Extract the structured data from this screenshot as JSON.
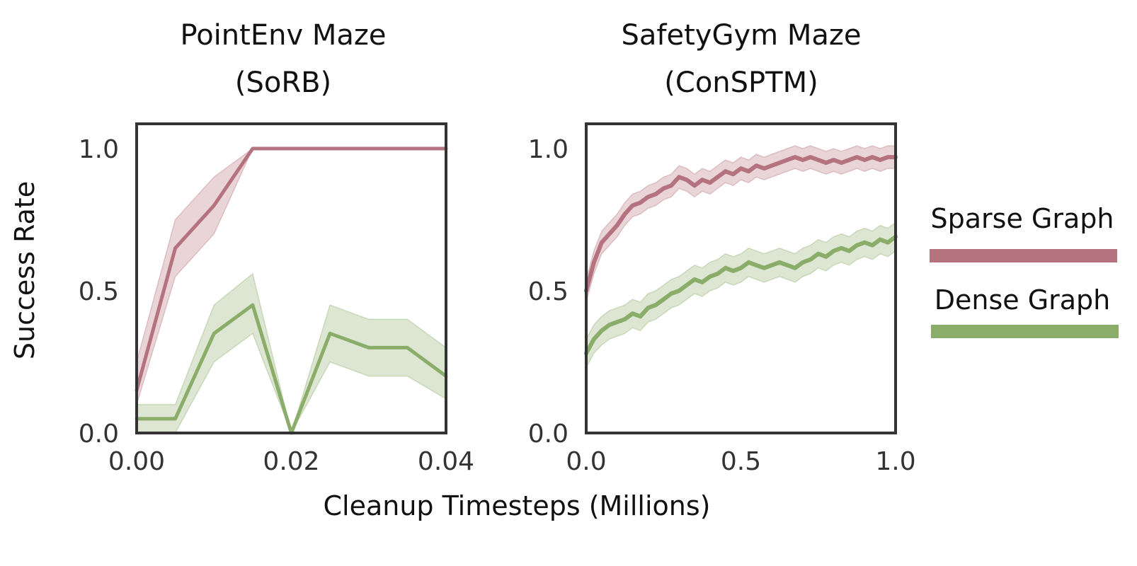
{
  "colors": {
    "sparse": "#b5737f",
    "dense": "#8aad6a",
    "text": "#111111",
    "frame": "#333333"
  },
  "ylabel": "Success Rate",
  "xlabel": "Cleanup Timesteps (Millions)",
  "legend": [
    {
      "label": "Sparse Graph",
      "color": "#b5737f"
    },
    {
      "label": "Dense Graph",
      "color": "#8aad6a"
    }
  ],
  "chart_data": [
    {
      "type": "line",
      "title_line1": "PointEnv Maze",
      "title_line2": "(SoRB)",
      "xlim": [
        0,
        0.04
      ],
      "ylim": [
        0,
        1.0
      ],
      "xticks": [
        "0.00",
        "0.02",
        "0.04"
      ],
      "xtick_values": [
        0,
        0.02,
        0.04
      ],
      "yticks": [
        "0.0",
        "0.5",
        "1.0"
      ],
      "ytick_values": [
        0,
        0.5,
        1.0
      ],
      "grid": false,
      "series": [
        {
          "name": "Sparse Graph",
          "x": [
            0,
            0.005,
            0.01,
            0.015,
            0.02,
            0.025,
            0.03,
            0.035,
            0.04
          ],
          "y": [
            0.15,
            0.65,
            0.8,
            1.0,
            1.0,
            1.0,
            1.0,
            1.0,
            1.0
          ],
          "lower": [
            0.1,
            0.55,
            0.7,
            1.0,
            1.0,
            1.0,
            1.0,
            1.0,
            1.0
          ],
          "upper": [
            0.25,
            0.75,
            0.9,
            1.0,
            1.0,
            1.0,
            1.0,
            1.0,
            1.0
          ]
        },
        {
          "name": "Dense Graph",
          "x": [
            0,
            0.005,
            0.01,
            0.015,
            0.02,
            0.025,
            0.03,
            0.035,
            0.04
          ],
          "y": [
            0.05,
            0.05,
            0.35,
            0.45,
            0.0,
            0.35,
            0.3,
            0.3,
            0.2
          ],
          "lower": [
            0.0,
            0.0,
            0.25,
            0.35,
            0.0,
            0.25,
            0.2,
            0.2,
            0.12
          ],
          "upper": [
            0.1,
            0.1,
            0.45,
            0.56,
            0.0,
            0.45,
            0.4,
            0.4,
            0.3
          ]
        }
      ]
    },
    {
      "type": "line",
      "title_line1": "SafetyGym Maze",
      "title_line2": "(ConSPTM)",
      "xlim": [
        0,
        1.0
      ],
      "ylim": [
        0,
        1.0
      ],
      "xticks": [
        "0.0",
        "0.5",
        "1.0"
      ],
      "xtick_values": [
        0,
        0.5,
        1.0
      ],
      "yticks": [
        "0.0",
        "0.5",
        "1.0"
      ],
      "ytick_values": [
        0,
        0.5,
        1.0
      ],
      "grid": false,
      "series": [
        {
          "name": "Sparse Graph",
          "x": [
            0,
            0.025,
            0.05,
            0.075,
            0.1,
            0.125,
            0.15,
            0.175,
            0.2,
            0.225,
            0.25,
            0.275,
            0.3,
            0.325,
            0.35,
            0.375,
            0.4,
            0.425,
            0.45,
            0.475,
            0.5,
            0.525,
            0.55,
            0.575,
            0.6,
            0.625,
            0.65,
            0.675,
            0.7,
            0.725,
            0.75,
            0.775,
            0.8,
            0.825,
            0.85,
            0.875,
            0.9,
            0.925,
            0.95,
            0.975,
            1.0
          ],
          "y": [
            0.5,
            0.6,
            0.67,
            0.7,
            0.73,
            0.77,
            0.8,
            0.81,
            0.83,
            0.84,
            0.86,
            0.87,
            0.9,
            0.89,
            0.87,
            0.89,
            0.88,
            0.9,
            0.92,
            0.91,
            0.93,
            0.92,
            0.94,
            0.93,
            0.94,
            0.95,
            0.96,
            0.97,
            0.96,
            0.97,
            0.96,
            0.95,
            0.96,
            0.95,
            0.96,
            0.97,
            0.96,
            0.97,
            0.96,
            0.97,
            0.97
          ],
          "band": 0.04
        },
        {
          "name": "Dense Graph",
          "x": [
            0,
            0.025,
            0.05,
            0.075,
            0.1,
            0.125,
            0.15,
            0.175,
            0.2,
            0.225,
            0.25,
            0.275,
            0.3,
            0.325,
            0.35,
            0.375,
            0.4,
            0.425,
            0.45,
            0.475,
            0.5,
            0.525,
            0.55,
            0.575,
            0.6,
            0.625,
            0.65,
            0.675,
            0.7,
            0.725,
            0.75,
            0.775,
            0.8,
            0.825,
            0.85,
            0.875,
            0.9,
            0.925,
            0.95,
            0.975,
            1.0
          ],
          "y": [
            0.28,
            0.33,
            0.36,
            0.38,
            0.39,
            0.4,
            0.42,
            0.41,
            0.44,
            0.45,
            0.47,
            0.49,
            0.5,
            0.52,
            0.54,
            0.53,
            0.55,
            0.56,
            0.58,
            0.57,
            0.58,
            0.6,
            0.59,
            0.58,
            0.59,
            0.6,
            0.59,
            0.58,
            0.6,
            0.61,
            0.63,
            0.62,
            0.64,
            0.65,
            0.64,
            0.66,
            0.67,
            0.66,
            0.68,
            0.67,
            0.69
          ],
          "band": 0.05
        }
      ]
    }
  ]
}
